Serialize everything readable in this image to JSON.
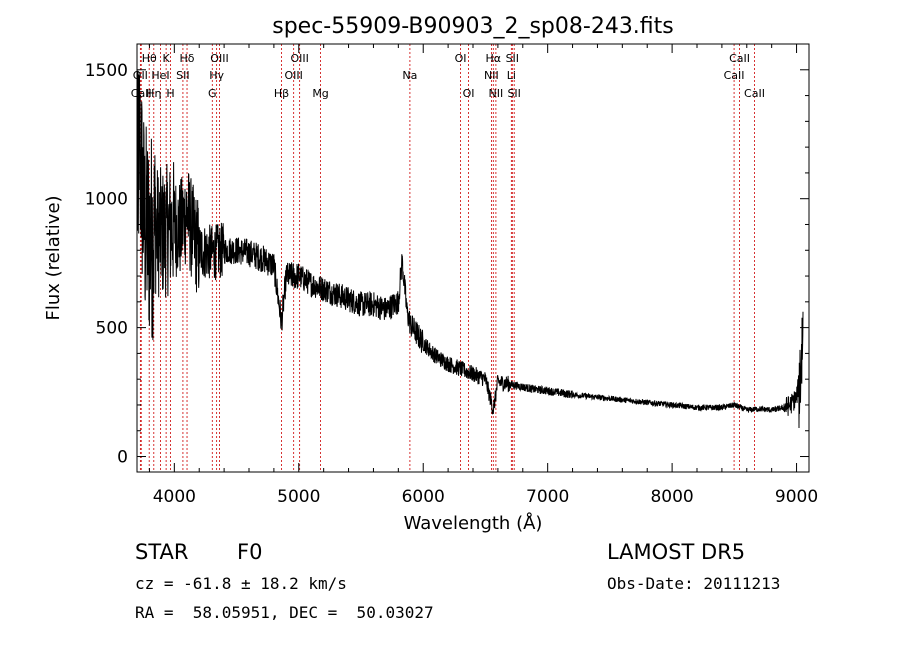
{
  "chart_data": {
    "type": "line",
    "title": "spec-55909-B90903_2_sp08-243.fits",
    "xlabel": "Wavelength (Å)",
    "ylabel": "Flux (relative)",
    "xlim": [
      3700,
      9100
    ],
    "ylim": [
      -60,
      1600
    ],
    "xticks": [
      4000,
      5000,
      6000,
      7000,
      8000,
      9000
    ],
    "yticks": [
      0,
      500,
      1000,
      1500
    ],
    "line_color": "#000000",
    "marker_color": "#cc0000",
    "spectrum_profile": {
      "x": [
        3700,
        3720,
        3760,
        3800,
        3850,
        3900,
        3950,
        4000,
        4050,
        4100,
        4150,
        4200,
        4300,
        4400,
        4500,
        4600,
        4700,
        4800,
        4861,
        4900,
        5000,
        5100,
        5200,
        5300,
        5400,
        5500,
        5600,
        5700,
        5800,
        5830,
        5870,
        5900,
        6000,
        6100,
        6200,
        6300,
        6400,
        6500,
        6563,
        6600,
        6700,
        6800,
        6900,
        7000,
        7200,
        7400,
        7600,
        7800,
        8000,
        8200,
        8400,
        8500,
        8600,
        8700,
        8800,
        8900,
        8950,
        9000,
        9030,
        9050
      ],
      "y": [
        1000,
        1200,
        900,
        850,
        880,
        860,
        880,
        900,
        880,
        950,
        860,
        800,
        790,
        800,
        800,
        790,
        770,
        740,
        520,
        700,
        700,
        670,
        650,
        630,
        610,
        590,
        590,
        570,
        600,
        760,
        560,
        510,
        440,
        390,
        360,
        340,
        320,
        300,
        180,
        290,
        280,
        270,
        260,
        255,
        240,
        230,
        220,
        210,
        200,
        190,
        190,
        200,
        180,
        185,
        180,
        190,
        200,
        230,
        320,
        480
      ]
    },
    "lines": [
      {
        "label": "Hθ",
        "wavelength": 3798,
        "row": 1
      },
      {
        "label": "OII",
        "wavelength": 3727,
        "row": 2
      },
      {
        "label": "CaII",
        "wavelength": 3734,
        "row": 3
      },
      {
        "label": "Hη",
        "wavelength": 3835,
        "row": 3
      },
      {
        "label": "K",
        "wavelength": 3934,
        "row": 1
      },
      {
        "label": "HeI",
        "wavelength": 3889,
        "row": 2
      },
      {
        "label": "H",
        "wavelength": 3969,
        "row": 3
      },
      {
        "label": "Hδ",
        "wavelength": 4102,
        "row": 1
      },
      {
        "label": "SII",
        "wavelength": 4069,
        "row": 2
      },
      {
        "label": "OIII",
        "wavelength": 4363,
        "row": 1
      },
      {
        "label": "Hγ",
        "wavelength": 4340,
        "row": 2
      },
      {
        "label": "G",
        "wavelength": 4305,
        "row": 3
      },
      {
        "label": "Hβ",
        "wavelength": 4861,
        "row": 3
      },
      {
        "label": "OIII",
        "wavelength": 5007,
        "row": 1
      },
      {
        "label": "OIII",
        "wavelength": 4959,
        "row": 2
      },
      {
        "label": "Mg",
        "wavelength": 5175,
        "row": 3
      },
      {
        "label": "Na",
        "wavelength": 5893,
        "row": 2
      },
      {
        "label": "OI",
        "wavelength": 6300,
        "row": 1
      },
      {
        "label": "OI",
        "wavelength": 6364,
        "row": 3
      },
      {
        "label": "Hα",
        "wavelength": 6563,
        "row": 1
      },
      {
        "label": "SII",
        "wavelength": 6716,
        "row": 1
      },
      {
        "label": "NII",
        "wavelength": 6548,
        "row": 2
      },
      {
        "label": "Li",
        "wavelength": 6708,
        "row": 2
      },
      {
        "label": "NII",
        "wavelength": 6584,
        "row": 3
      },
      {
        "label": "SII",
        "wavelength": 6731,
        "row": 3
      },
      {
        "label": "CaII",
        "wavelength": 8542,
        "row": 1
      },
      {
        "label": "CaII",
        "wavelength": 8498,
        "row": 2
      },
      {
        "label": "CaII",
        "wavelength": 8662,
        "row": 3
      }
    ]
  },
  "info": {
    "class_label": "STAR",
    "subclass": "F0",
    "survey": "LAMOST DR5",
    "cz": "cz = -61.8 ± 18.2 km/s",
    "obs_date": "Obs-Date: 20111213",
    "coords": "RA =  58.05951, DEC =  50.03027"
  }
}
